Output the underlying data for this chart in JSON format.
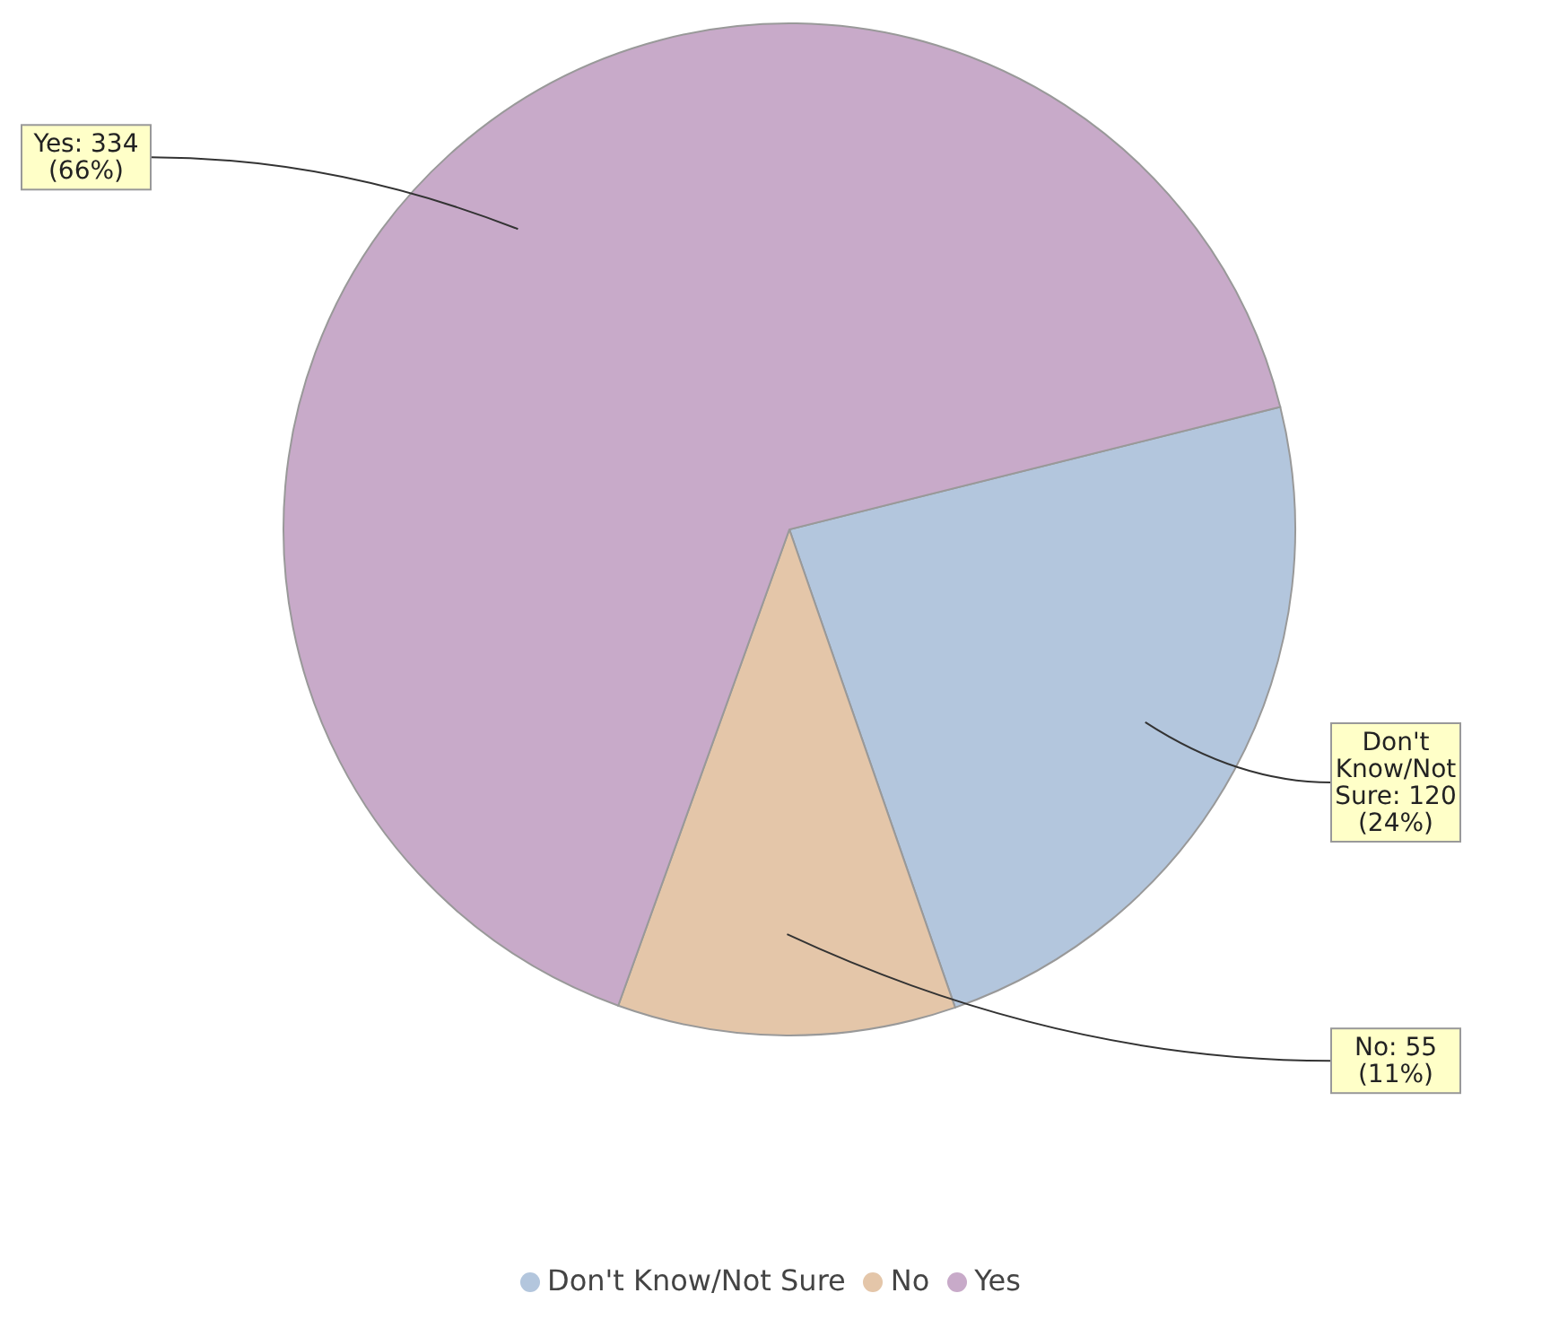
{
  "chart_data": {
    "type": "pie",
    "categories": [
      "Don't Know/Not Sure",
      "No",
      "Yes"
    ],
    "values": [
      120,
      55,
      334
    ],
    "colors": [
      "#b3c6dd",
      "#e4c6a9",
      "#c8aac9"
    ],
    "value_labels": [
      "Don't Know/Not Sure: 120 (24%)",
      "No: 55 (11%)",
      "Yes: 334 (66%)"
    ],
    "legend": "bottom"
  }
}
